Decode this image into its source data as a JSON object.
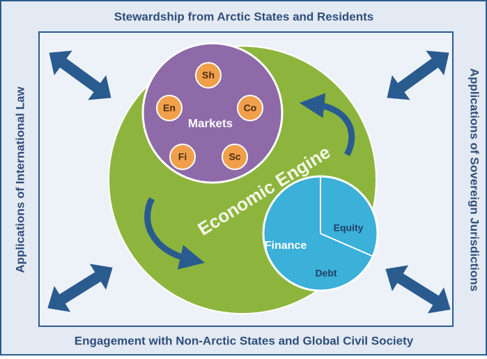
{
  "header": {
    "title": "Stewardship from Arctic States and Residents"
  },
  "footer": {
    "title": "Engagement with Non-Arctic States and Global Civil Society"
  },
  "left_label": "Applications of International Law",
  "right_label": "Applications of Sovereign Jurisdictions",
  "engine": {
    "label": "Economic Engine"
  },
  "markets": {
    "label": "Markets",
    "items": [
      "Sh",
      "En",
      "Co",
      "Fi",
      "Sc"
    ]
  },
  "finance": {
    "label": "Finance",
    "segments": [
      "Equity",
      "Debt"
    ]
  }
}
